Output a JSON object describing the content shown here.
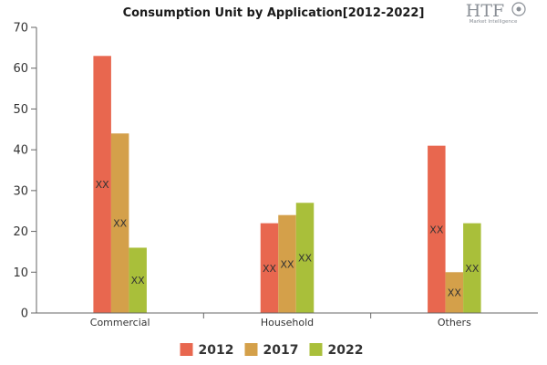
{
  "logo": {
    "text": "HTF",
    "tagline": "Market Intelligence"
  },
  "chart_data": {
    "type": "bar",
    "title": "Consumption Unit by  Application[2012-2022]",
    "categories": [
      "Commercial",
      "Household",
      "Others"
    ],
    "series": [
      {
        "name": "2012",
        "values": [
          63,
          22,
          41
        ],
        "labels": [
          "XX",
          "XX",
          "XX"
        ],
        "color": "#e8674f"
      },
      {
        "name": "2017",
        "values": [
          44,
          24,
          10
        ],
        "labels": [
          "XX",
          "XX",
          "XX"
        ],
        "color": "#d4a04a"
      },
      {
        "name": "2022",
        "values": [
          16,
          27,
          22
        ],
        "labels": [
          "XX",
          "XX",
          "XX"
        ],
        "color": "#a9bf3a"
      }
    ],
    "ylim": [
      0,
      70
    ],
    "yticks": [
      0,
      10,
      20,
      30,
      40,
      50,
      60,
      70
    ],
    "xlabel": "",
    "ylabel": "",
    "grid": false,
    "legend": "bottom"
  }
}
